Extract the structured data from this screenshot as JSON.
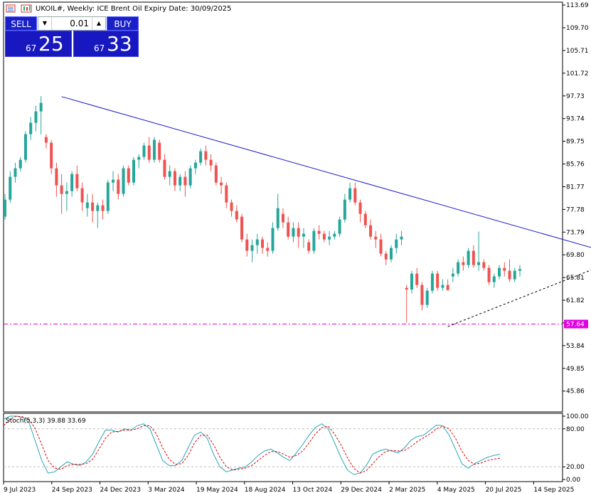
{
  "title": "UKOIL#, Weekly:  ICE Brent Oil Expiry Date: 30/09/2025",
  "trade_panel": {
    "sell_label": "SELL",
    "buy_label": "BUY",
    "lot_value": "0.01",
    "sell_price_small": "67",
    "sell_price_big": "25",
    "buy_price_small": "67",
    "buy_price_big": "33",
    "down_arrow": "▼",
    "up_arrow": "▲"
  },
  "colors": {
    "bull": "#26a69a",
    "bear": "#ef5350",
    "trendline": "#1a1acc",
    "support_line": "#e000e0",
    "stoch_main": "#26a6b8",
    "stoch_signal": "#e00000"
  },
  "chart_data": [
    {
      "type": "candlestick",
      "title": "UKOIL#, Weekly",
      "y_ticks": [
        "113.69",
        "109.70",
        "105.71",
        "101.72",
        "97.73",
        "93.74",
        "89.75",
        "85.76",
        "81.77",
        "77.78",
        "73.79",
        "69.80",
        "65.81",
        "61.82",
        "57.84",
        "53.84",
        "49.85",
        "45.86"
      ],
      "ylim": [
        42.2,
        114.2
      ],
      "x_ticks": [
        "9 Jul 2023",
        "24 Sep 2023",
        "24 Dec 2023",
        "3 Mar 2024",
        "19 May 2024",
        "18 Aug 2024",
        "13 Oct 2024",
        "29 Dec 2024",
        "2 Mar 2025",
        "4 May 2025",
        "20 Jul 2025",
        "14 Sep 2025"
      ],
      "horizontal_line": {
        "value": 57.64,
        "label": "57.64"
      },
      "trendlines": [
        {
          "style": "solid",
          "from": {
            "date": "2023-09-24",
            "value": 97.6
          },
          "to": {
            "date": "2025-10-26",
            "value": 69.5
          }
        },
        {
          "style": "dashed",
          "from": {
            "date": "2025-03-02",
            "value": 57.2
          },
          "to": {
            "date": "2025-09-28",
            "value": 67.9
          }
        }
      ],
      "candles": [
        [
          76.5,
          80.5,
          76.0,
          79.5
        ],
        [
          79.5,
          84.5,
          79.0,
          83.5
        ],
        [
          83.5,
          86.0,
          82.5,
          85.0
        ],
        [
          85.0,
          87.0,
          84.5,
          86.5
        ],
        [
          86.5,
          91.5,
          86.0,
          91.0
        ],
        [
          91.0,
          94.0,
          90.0,
          93.0
        ],
        [
          93.0,
          96.0,
          91.5,
          95.0
        ],
        [
          95.0,
          97.7,
          91.0,
          96.5
        ],
        [
          90.5,
          91.0,
          88.5,
          89.5
        ],
        [
          89.5,
          90.0,
          84.0,
          85.0
        ],
        [
          85.0,
          86.0,
          80.0,
          82.0
        ],
        [
          82.0,
          84.0,
          77.0,
          80.5
        ],
        [
          80.5,
          82.5,
          77.5,
          81.0
        ],
        [
          81.0,
          84.5,
          80.0,
          84.0
        ],
        [
          84.0,
          85.5,
          81.0,
          81.5
        ],
        [
          81.5,
          82.5,
          77.5,
          79.0
        ],
        [
          78.0,
          80.5,
          76.5,
          79.0
        ],
        [
          79.0,
          80.5,
          75.5,
          77.5
        ],
        [
          77.5,
          79.0,
          74.5,
          78.5
        ],
        [
          78.5,
          79.5,
          76.0,
          77.5
        ],
        [
          77.5,
          83.0,
          77.0,
          82.5
        ],
        [
          82.5,
          84.5,
          81.0,
          83.0
        ],
        [
          83.0,
          84.0,
          79.5,
          80.5
        ],
        [
          80.5,
          85.5,
          80.0,
          85.0
        ],
        [
          85.0,
          85.5,
          82.0,
          82.5
        ],
        [
          82.5,
          87.0,
          82.0,
          86.5
        ],
        [
          86.5,
          87.5,
          85.0,
          87.0
        ],
        [
          87.0,
          89.5,
          86.5,
          89.0
        ],
        [
          89.0,
          90.5,
          86.0,
          86.5
        ],
        [
          86.5,
          90.5,
          86.0,
          90.0
        ],
        [
          89.5,
          90.0,
          86.0,
          86.5
        ],
        [
          86.5,
          87.5,
          83.0,
          83.5
        ],
        [
          83.5,
          85.5,
          82.0,
          84.5
        ],
        [
          84.5,
          85.0,
          81.0,
          82.0
        ],
        [
          82.0,
          84.0,
          81.0,
          83.5
        ],
        [
          83.5,
          84.5,
          80.0,
          82.0
        ],
        [
          82.0,
          85.5,
          81.5,
          85.0
        ],
        [
          85.0,
          86.5,
          84.0,
          86.0
        ],
        [
          86.0,
          88.5,
          85.5,
          88.0
        ],
        [
          88.0,
          89.0,
          85.5,
          86.5
        ],
        [
          86.5,
          87.5,
          84.5,
          85.5
        ],
        [
          85.5,
          86.0,
          82.0,
          82.5
        ],
        [
          82.5,
          83.5,
          80.5,
          82.0
        ],
        [
          82.0,
          82.5,
          78.0,
          79.0
        ],
        [
          79.0,
          79.5,
          76.5,
          77.5
        ],
        [
          77.5,
          78.5,
          75.5,
          76.0
        ],
        [
          76.5,
          77.0,
          72.0,
          72.5
        ],
        [
          72.5,
          73.5,
          69.5,
          70.5
        ],
        [
          70.5,
          72.5,
          68.5,
          71.5
        ],
        [
          71.5,
          73.5,
          70.0,
          72.5
        ],
        [
          72.5,
          73.0,
          70.0,
          71.0
        ],
        [
          71.0,
          72.0,
          69.5,
          70.5
        ],
        [
          70.5,
          75.5,
          70.0,
          74.5
        ],
        [
          74.5,
          80.5,
          74.0,
          78.0
        ],
        [
          77.0,
          78.0,
          74.5,
          75.5
        ],
        [
          75.5,
          76.5,
          72.5,
          73.0
        ],
        [
          73.0,
          75.5,
          72.0,
          74.5
        ],
        [
          74.5,
          75.5,
          71.0,
          73.0
        ],
        [
          73.0,
          74.5,
          71.0,
          73.5
        ],
        [
          72.0,
          72.5,
          70.0,
          70.5
        ],
        [
          70.5,
          74.5,
          70.0,
          74.0
        ],
        [
          74.0,
          75.0,
          72.5,
          73.5
        ],
        [
          73.5,
          74.0,
          72.0,
          72.5
        ],
        [
          72.5,
          74.0,
          71.5,
          73.0
        ],
        [
          73.0,
          74.0,
          72.5,
          73.5
        ],
        [
          73.5,
          76.5,
          73.0,
          76.0
        ],
        [
          76.0,
          80.5,
          75.5,
          79.5
        ],
        [
          79.5,
          82.5,
          79.0,
          81.5
        ],
        [
          81.5,
          82.5,
          78.5,
          79.0
        ],
        [
          79.0,
          79.5,
          75.5,
          77.0
        ],
        [
          77.0,
          77.5,
          74.5,
          75.0
        ],
        [
          75.0,
          76.0,
          72.5,
          73.0
        ],
        [
          73.0,
          74.0,
          71.0,
          72.5
        ],
        [
          72.5,
          73.5,
          69.5,
          70.0
        ],
        [
          70.0,
          70.5,
          68.0,
          69.0
        ],
        [
          69.0,
          71.5,
          68.5,
          71.0
        ],
        [
          71.0,
          73.5,
          70.0,
          72.5
        ],
        [
          72.5,
          74.0,
          71.5,
          73.0
        ],
        [
          64.0,
          64.5,
          57.9,
          63.7
        ],
        [
          63.7,
          67.0,
          63.0,
          66.5
        ],
        [
          66.5,
          67.5,
          64.0,
          64.5
        ],
        [
          64.5,
          65.0,
          60.0,
          61.0
        ],
        [
          61.0,
          64.0,
          60.5,
          63.5
        ],
        [
          63.5,
          67.0,
          63.0,
          66.5
        ],
        [
          66.5,
          67.0,
          63.5,
          64.0
        ],
        [
          64.0,
          65.5,
          63.5,
          64.5
        ],
        [
          64.5,
          65.5,
          63.5,
          63.6
        ],
        [
          66.0,
          67.5,
          65.0,
          66.5
        ],
        [
          66.5,
          69.0,
          66.0,
          68.5
        ],
        [
          68.5,
          69.5,
          67.0,
          68.0
        ],
        [
          68.0,
          71.0,
          67.5,
          70.5
        ],
        [
          70.5,
          71.5,
          67.5,
          68.0
        ],
        [
          68.0,
          73.9,
          67.0,
          68.5
        ],
        [
          68.5,
          69.0,
          67.0,
          67.5
        ],
        [
          67.5,
          68.0,
          64.5,
          65.0
        ],
        [
          65.0,
          66.5,
          64.0,
          66.0
        ],
        [
          66.0,
          68.0,
          65.5,
          67.5
        ],
        [
          67.5,
          68.5,
          66.0,
          67.0
        ],
        [
          67.0,
          69.0,
          65.0,
          65.5
        ],
        [
          65.5,
          67.5,
          65.0,
          67.0
        ],
        [
          67.0,
          68.0,
          66.0,
          67.3
        ]
      ]
    },
    {
      "type": "line",
      "title": "Stoch(5,3,3) 39.88 33.69",
      "y_ticks": [
        "100.00",
        "80.00",
        "20.00",
        "0.00"
      ],
      "ylim": [
        0,
        100
      ],
      "series": [
        {
          "name": "Main",
          "values": [
            95,
            100,
            100,
            98,
            90,
            60,
            30,
            10,
            12,
            20,
            28,
            24,
            22,
            28,
            40,
            60,
            78,
            78,
            75,
            80,
            78,
            85,
            88,
            80,
            55,
            30,
            22,
            22,
            30,
            50,
            70,
            75,
            65,
            40,
            20,
            12,
            15,
            18,
            20,
            28,
            38,
            45,
            48,
            42,
            35,
            30,
            42,
            55,
            70,
            82,
            88,
            80,
            58,
            35,
            15,
            8,
            10,
            22,
            40,
            45,
            48,
            45,
            42,
            50,
            62,
            68,
            70,
            78,
            86,
            85,
            70,
            48,
            25,
            18,
            25,
            30,
            35,
            38,
            39.88
          ]
        },
        {
          "name": "Signal",
          "values": [
            85,
            95,
            100,
            99,
            95,
            80,
            55,
            30,
            18,
            16,
            22,
            24,
            24,
            25,
            32,
            48,
            65,
            75,
            76,
            78,
            78,
            80,
            85,
            85,
            72,
            50,
            32,
            24,
            25,
            38,
            58,
            70,
            70,
            55,
            35,
            20,
            15,
            16,
            18,
            22,
            30,
            38,
            44,
            44,
            40,
            35,
            38,
            45,
            58,
            72,
            82,
            84,
            72,
            55,
            35,
            18,
            10,
            14,
            25,
            36,
            44,
            46,
            45,
            46,
            52,
            60,
            66,
            72,
            80,
            84,
            80,
            65,
            45,
            30,
            24,
            26,
            30,
            32,
            33.69
          ]
        }
      ]
    }
  ]
}
